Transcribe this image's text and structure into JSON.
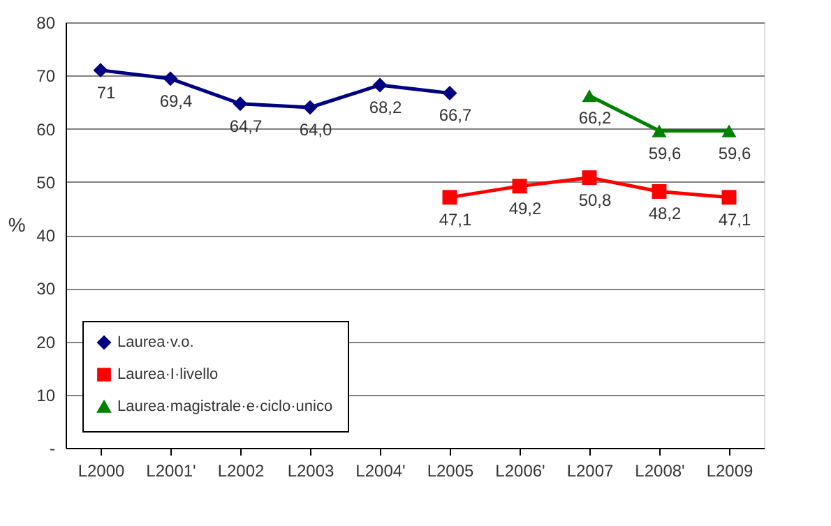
{
  "chart_data": {
    "type": "line",
    "ylabel": "%",
    "categories": [
      "L2000",
      "L2001'",
      "L2002",
      "L2003",
      "L2004'",
      "L2005",
      "L2006'",
      "L2007",
      "L2008'",
      "L2009"
    ],
    "series": [
      {
        "name": "Laurea·v.o.",
        "color": "#000080",
        "marker": "diamond",
        "values": [
          71,
          69.4,
          64.7,
          64.0,
          68.2,
          66.7,
          null,
          null,
          null,
          null
        ],
        "value_labels": [
          "71",
          "69,4",
          "64,7",
          "64,0",
          "68,2",
          "66,7",
          null,
          null,
          null,
          null
        ]
      },
      {
        "name": "Laurea·I·livello",
        "color": "#ff0000",
        "marker": "square",
        "values": [
          null,
          null,
          null,
          null,
          null,
          47.1,
          49.2,
          50.8,
          48.2,
          47.1
        ],
        "value_labels": [
          null,
          null,
          null,
          null,
          null,
          "47,1",
          "49,2",
          "50,8",
          "48,2",
          "47,1"
        ]
      },
      {
        "name": "Laurea·magistrale·e·ciclo·unico",
        "color": "#008000",
        "marker": "triangle",
        "values": [
          null,
          null,
          null,
          null,
          null,
          null,
          null,
          66.2,
          59.6,
          59.6
        ],
        "value_labels": [
          null,
          null,
          null,
          null,
          null,
          null,
          null,
          "66,2",
          "59,6",
          "59,6"
        ]
      }
    ],
    "ylim": [
      0,
      80
    ],
    "yticks": [
      {
        "value": 0,
        "label": "-"
      },
      10,
      20,
      30,
      40,
      50,
      60,
      70,
      80
    ],
    "grid": "y",
    "legend": "bottom left",
    "line_style": "solid"
  }
}
